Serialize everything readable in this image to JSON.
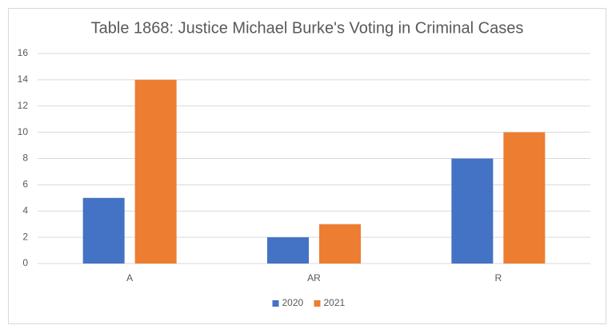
{
  "chart_data": {
    "type": "bar",
    "title": "Table 1868: Justice Michael Burke's Voting in Criminal Cases",
    "categories": [
      "A",
      "AR",
      "R"
    ],
    "series": [
      {
        "name": "2020",
        "color": "#4472c4",
        "values": [
          5,
          2,
          8
        ]
      },
      {
        "name": "2021",
        "color": "#ed7d31",
        "values": [
          14,
          3,
          10
        ]
      }
    ],
    "ylim": [
      0,
      16
    ],
    "yticks": [
      0,
      2,
      4,
      6,
      8,
      10,
      12,
      14,
      16
    ],
    "grid": true,
    "legend": "bottom"
  }
}
